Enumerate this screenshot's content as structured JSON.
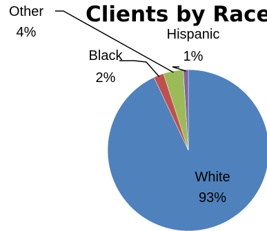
{
  "chart_data": {
    "type": "pie",
    "title": "Clients by Race",
    "slices": [
      {
        "name": "White",
        "value": 93,
        "label": "93%",
        "color": "#4F81BD"
      },
      {
        "name": "Black",
        "value": 2,
        "label": "2%",
        "color": "#C0504D"
      },
      {
        "name": "Other",
        "value": 4,
        "label": "4%",
        "color": "#9BBB59"
      },
      {
        "name": "Hispanic",
        "value": 1,
        "label": "1%",
        "color": "#8064A2"
      }
    ]
  }
}
